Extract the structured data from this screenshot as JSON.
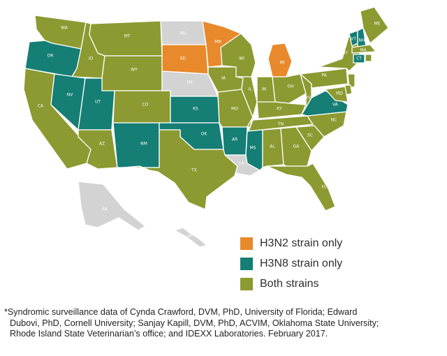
{
  "colors": {
    "H3N2": "#E8892B",
    "H3N8": "#157E75",
    "Both": "#8C9A31",
    "None": "#D3D3D3"
  },
  "legend": [
    {
      "key": "H3N2",
      "label": "H3N2 strain only"
    },
    {
      "key": "H3N8",
      "label": "H3N8 strain only"
    },
    {
      "key": "Both",
      "label": "Both strains"
    }
  ],
  "states": {
    "WA": "Both",
    "OR": "H3N8",
    "CA": "Both",
    "ID": "Both",
    "NV": "H3N8",
    "MT": "Both",
    "WY": "Both",
    "UT": "H3N8",
    "AZ": "Both",
    "CO": "Both",
    "NM": "H3N8",
    "ND": "None",
    "SD": "H3N2",
    "NE": "None",
    "KS": "H3N8",
    "OK": "H3N8",
    "TX": "Both",
    "MN": "H3N2",
    "IA": "Both",
    "MO": "Both",
    "AR": "H3N8",
    "LA": "None",
    "WI": "Both",
    "IL": "Both",
    "MI": "H3N2",
    "IN": "Both",
    "OH": "Both",
    "KY": "Both",
    "TN": "Both",
    "MS": "H3N8",
    "AL": "Both",
    "GA": "Both",
    "FL": "Both",
    "SC": "Both",
    "NC": "Both",
    "VA": "H3N8",
    "WV": "Both",
    "PA": "Both",
    "NY": "Both",
    "VT": "H3N8",
    "NH": "H3N8",
    "ME": "Both",
    "MA": "Both",
    "CT": "H3N8",
    "RI": "Both",
    "NJ": "Both",
    "DE": "Both",
    "MD": "Both",
    "AK": "None",
    "HI": "None"
  },
  "footnote": {
    "line1": "*Syndromic surveillance data of Cynda Crawford, DVM, PhD, University of Florida; Edward",
    "line2": "Dubovi, PhD, Cornell University; Sanjay Kapill, DVM, PhD, ACVIM, Oklahoma State University;",
    "line3": "Rhode Island State Veterinarian’s office; and IDEXX Laboratories. February 2017."
  }
}
